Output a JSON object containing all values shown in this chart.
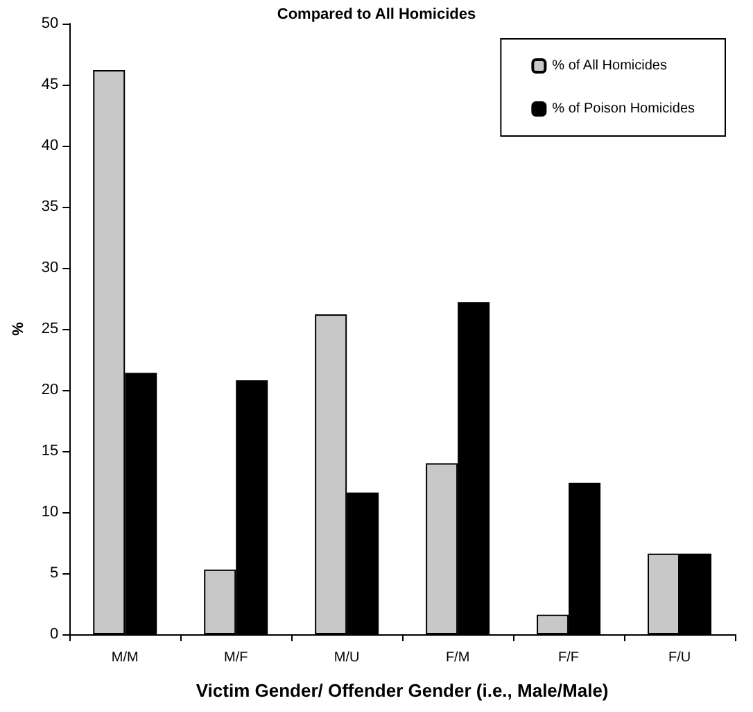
{
  "chart_data": {
    "type": "bar",
    "title": "Compared to All Homicides",
    "xlabel": "Victim Gender/ Offender Gender (i.e., Male/Male)",
    "ylabel": "%",
    "categories": [
      "M/M",
      "M/F",
      "M/U",
      "F/M",
      "F/F",
      "F/U"
    ],
    "series": [
      {
        "name": "% of All Homicides",
        "color": "#c8c8c8",
        "values": [
          46.2,
          5.3,
          26.2,
          14.0,
          1.6,
          6.6
        ]
      },
      {
        "name": "% of Poison Homicides",
        "color": "#000000",
        "values": [
          21.4,
          20.8,
          11.6,
          27.2,
          12.4,
          6.6
        ]
      }
    ],
    "ylim": [
      0,
      50
    ],
    "yticks": [
      0,
      5,
      10,
      15,
      20,
      25,
      30,
      35,
      40,
      45,
      50
    ],
    "grid": false,
    "legend": "top right"
  }
}
